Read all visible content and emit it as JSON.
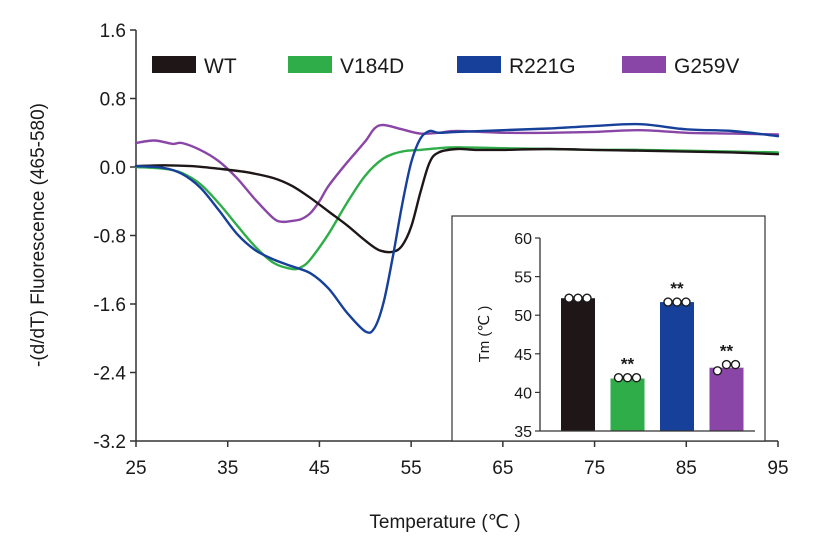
{
  "chart_data": [
    {
      "type": "line",
      "xlabel": "Temperature (℃ )",
      "ylabel": "-(d/dT) Fluorescence (465-580)",
      "xlim": [
        25,
        95
      ],
      "ylim": [
        -3.2,
        1.6
      ],
      "xticks": [
        "25",
        "35",
        "45",
        "55",
        "65",
        "75",
        "85",
        "95"
      ],
      "yticks": [
        "1.6",
        "0.8",
        "0.0",
        "-0.8",
        "-1.6",
        "-2.4",
        "-3.2"
      ],
      "legend_position": "top",
      "series": [
        {
          "name": "WT",
          "color": "#1f1717",
          "x": [
            25,
            28,
            31,
            34,
            37,
            40,
            42,
            44,
            46,
            48,
            50,
            51.5,
            53,
            54,
            55,
            56,
            57,
            58,
            60,
            62,
            65,
            70,
            75,
            80,
            85,
            90,
            95
          ],
          "y": [
            0.01,
            0.02,
            0.01,
            -0.02,
            -0.06,
            -0.13,
            -0.22,
            -0.36,
            -0.52,
            -0.68,
            -0.86,
            -0.97,
            -0.99,
            -0.92,
            -0.7,
            -0.3,
            0.05,
            0.17,
            0.21,
            0.2,
            0.2,
            0.21,
            0.2,
            0.19,
            0.18,
            0.17,
            0.15
          ]
        },
        {
          "name": "V184D",
          "color": "#2fad48",
          "x": [
            25,
            28,
            30,
            32,
            34,
            36,
            38,
            40,
            42,
            43,
            44,
            46,
            48,
            50,
            52,
            54,
            56,
            58,
            60,
            65,
            70,
            75,
            80,
            85,
            90,
            95
          ],
          "y": [
            0.0,
            -0.02,
            -0.07,
            -0.2,
            -0.42,
            -0.68,
            -0.93,
            -1.12,
            -1.19,
            -1.17,
            -1.08,
            -0.78,
            -0.42,
            -0.1,
            0.1,
            0.18,
            0.2,
            0.22,
            0.23,
            0.22,
            0.21,
            0.2,
            0.2,
            0.19,
            0.18,
            0.17
          ]
        },
        {
          "name": "R221G",
          "color": "#17409a",
          "x": [
            25,
            28,
            30,
            32,
            34,
            36,
            38,
            40,
            42,
            44,
            46,
            48,
            50,
            51,
            52,
            53,
            54,
            55,
            56,
            57,
            58,
            60,
            65,
            70,
            75,
            80,
            85,
            90,
            95
          ],
          "y": [
            0.01,
            -0.01,
            -0.08,
            -0.24,
            -0.5,
            -0.78,
            -0.97,
            -1.08,
            -1.16,
            -1.24,
            -1.42,
            -1.7,
            -1.92,
            -1.88,
            -1.58,
            -1.05,
            -0.45,
            0.05,
            0.33,
            0.42,
            0.4,
            0.41,
            0.43,
            0.45,
            0.48,
            0.5,
            0.44,
            0.42,
            0.36
          ]
        },
        {
          "name": "G259V",
          "color": "#8a46a6",
          "x": [
            25,
            27,
            29,
            30,
            32,
            34,
            36,
            38,
            40,
            41,
            42,
            43,
            44,
            45,
            46,
            48,
            50,
            51,
            52,
            54,
            56,
            58,
            60,
            65,
            70,
            75,
            80,
            85,
            90,
            95
          ],
          "y": [
            0.28,
            0.31,
            0.27,
            0.28,
            0.2,
            0.07,
            -0.13,
            -0.38,
            -0.6,
            -0.64,
            -0.63,
            -0.61,
            -0.54,
            -0.4,
            -0.22,
            0.05,
            0.3,
            0.45,
            0.49,
            0.44,
            0.39,
            0.4,
            0.42,
            0.4,
            0.4,
            0.41,
            0.43,
            0.4,
            0.39,
            0.38
          ]
        }
      ]
    },
    {
      "type": "bar",
      "ylabel": "Tm (℃ )",
      "ylim": [
        35,
        60
      ],
      "yticks": [
        "60",
        "55",
        "50",
        "45",
        "40",
        "35"
      ],
      "categories": [
        "WT",
        "V184D",
        "R221G",
        "G259V"
      ],
      "values": [
        52.2,
        41.8,
        51.7,
        43.2
      ],
      "colors": [
        "#1f1717",
        "#2fad48",
        "#17409a",
        "#8a46a6"
      ],
      "points": [
        [
          52.2,
          52.2,
          52.2
        ],
        [
          41.9,
          41.9,
          41.9
        ],
        [
          51.7,
          51.7,
          51.7
        ],
        [
          42.8,
          43.6,
          43.6
        ]
      ],
      "annotations": [
        "",
        "**",
        "**",
        "**"
      ]
    }
  ]
}
